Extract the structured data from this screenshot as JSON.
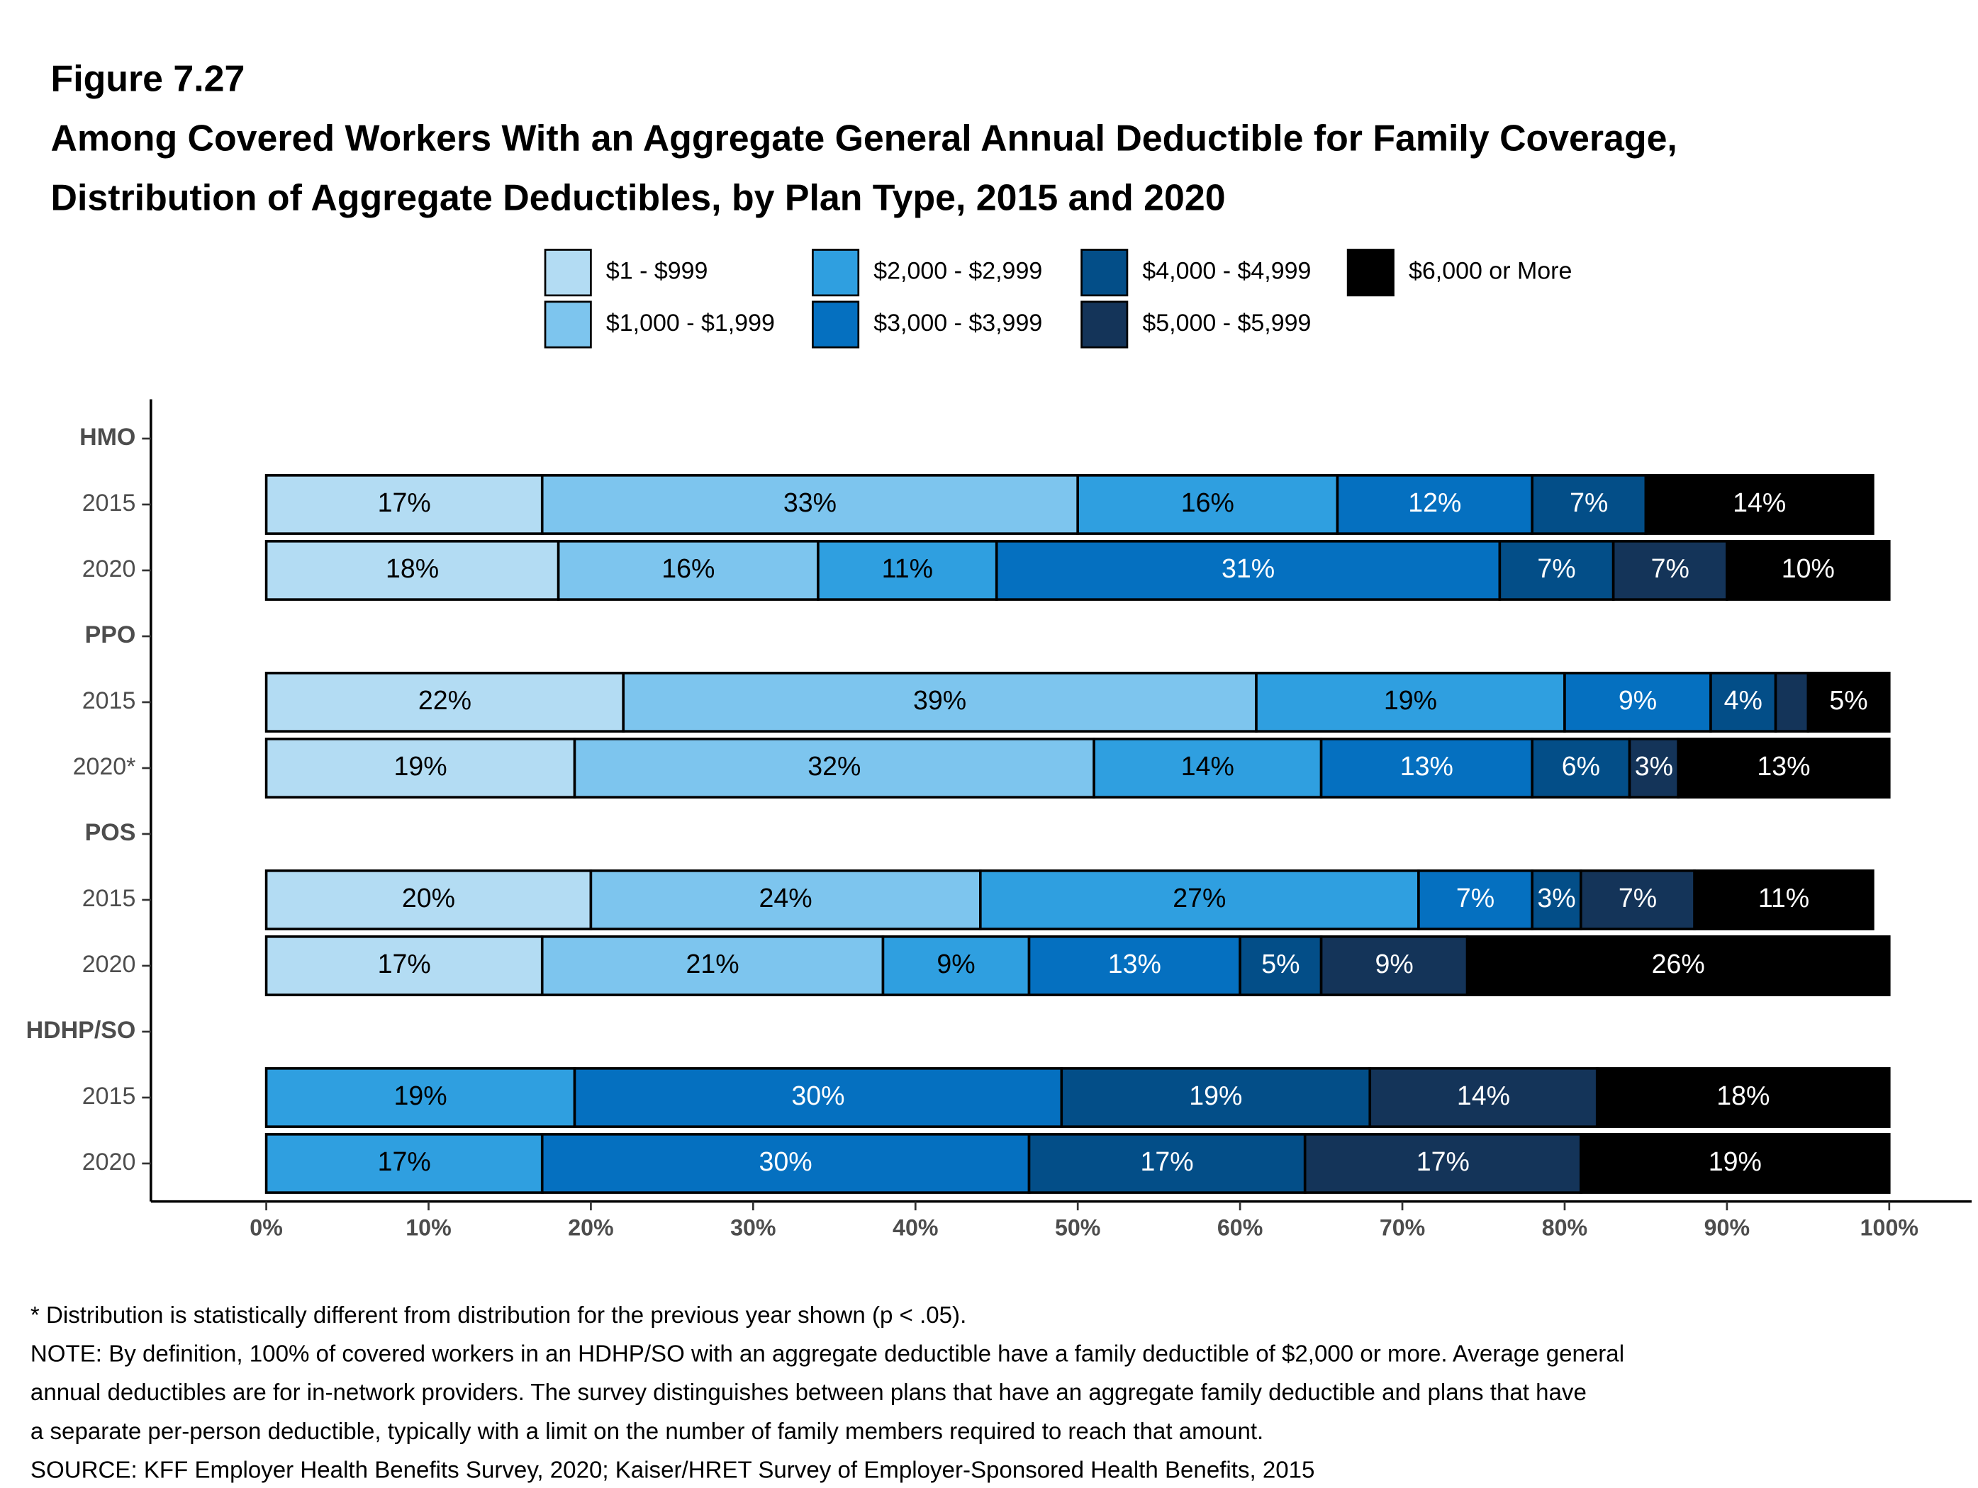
{
  "chart_data": {
    "type": "stacked-bar-horizontal",
    "figure_label": "Figure 7.27",
    "title": [
      "Among Covered Workers With an Aggregate General Annual Deductible for Family Coverage,",
      "Distribution of Aggregate Deductibles, by Plan Type, 2015 and 2020"
    ],
    "categories": [
      "HMO",
      "2015",
      "2020",
      "PPO",
      "2015",
      "2020*",
      "POS",
      "2015",
      "2020",
      "HDHP/SO",
      "2015",
      "2020"
    ],
    "series": [
      {
        "name": "$1 - $999",
        "color": "#b3dcf3",
        "label_color": "#000000",
        "values": [
          null,
          17,
          18,
          null,
          22,
          19,
          null,
          20,
          17,
          null,
          null,
          null
        ],
        "value_labels": [
          null,
          "17%",
          "18%",
          null,
          "22%",
          "19%",
          null,
          "20%",
          "17%",
          null,
          null,
          null
        ]
      },
      {
        "name": "$1,000 - $1,999",
        "color": "#7dc5ee",
        "label_color": "#000000",
        "values": [
          null,
          33,
          16,
          null,
          39,
          32,
          null,
          24,
          21,
          null,
          null,
          null
        ],
        "value_labels": [
          null,
          "33%",
          "16%",
          null,
          "39%",
          "32%",
          null,
          "24%",
          "21%",
          null,
          null,
          null
        ]
      },
      {
        "name": "$2,000 - $2,999",
        "color": "#2f9fe0",
        "label_color": "#000000",
        "values": [
          null,
          16,
          11,
          null,
          19,
          14,
          null,
          27,
          9,
          null,
          19,
          17
        ],
        "value_labels": [
          null,
          "16%",
          "11%",
          null,
          "19%",
          "14%",
          null,
          "27%",
          "9%",
          null,
          "19%",
          "17%"
        ]
      },
      {
        "name": "$3,000 - $3,999",
        "color": "#0570c0",
        "label_color": "#ffffff",
        "values": [
          null,
          12,
          31,
          null,
          9,
          13,
          null,
          7,
          13,
          null,
          30,
          30
        ],
        "value_labels": [
          null,
          "12%",
          "31%",
          null,
          "9%",
          "13%",
          null,
          "7%",
          "13%",
          null,
          "30%",
          "30%"
        ]
      },
      {
        "name": "$4,000 - $4,999",
        "color": "#034e88",
        "label_color": "#ffffff",
        "values": [
          null,
          7,
          7,
          null,
          4,
          6,
          null,
          3,
          5,
          null,
          19,
          17
        ],
        "value_labels": [
          null,
          "7%",
          "7%",
          null,
          "4%",
          "6%",
          null,
          "3%",
          "5%",
          null,
          "19%",
          "17%"
        ]
      },
      {
        "name": "$5,000 - $5,999",
        "color": "#143459",
        "label_color": "#ffffff",
        "values": [
          null,
          null,
          7,
          null,
          2,
          3,
          null,
          7,
          9,
          null,
          14,
          17
        ],
        "value_labels": [
          null,
          null,
          "7%",
          null,
          null,
          "3%",
          null,
          "7%",
          "9%",
          null,
          "14%",
          "17%"
        ]
      },
      {
        "name": "$6,000 or More",
        "color": "#000000",
        "label_color": "#ffffff",
        "values": [
          null,
          14,
          10,
          null,
          5,
          13,
          null,
          11,
          26,
          null,
          18,
          19
        ],
        "value_labels": [
          null,
          "14%",
          "10%",
          null,
          "5%",
          "13%",
          null,
          "11%",
          "26%",
          null,
          "18%",
          "19%"
        ]
      }
    ],
    "xlim": [
      0,
      100
    ],
    "xticks": [
      {
        "value": 0,
        "label": "0%"
      },
      {
        "value": 10,
        "label": "10%"
      },
      {
        "value": 20,
        "label": "20%"
      },
      {
        "value": 30,
        "label": "30%"
      },
      {
        "value": 40,
        "label": "40%"
      },
      {
        "value": 50,
        "label": "50%"
      },
      {
        "value": 60,
        "label": "60%"
      },
      {
        "value": 70,
        "label": "70%"
      },
      {
        "value": 80,
        "label": "80%"
      },
      {
        "value": 90,
        "label": "90%"
      },
      {
        "value": 100,
        "label": "100%"
      }
    ],
    "notes": [
      "* Distribution is statistically different from distribution for the previous year shown (p < .05).",
      "NOTE: By definition, 100% of covered workers in an HDHP/SO with an aggregate deductible have a family deductible of $2,000 or more. Average general",
      "annual deductibles are for in-network providers. The survey distinguishes between plans that have an aggregate family deductible and plans that have",
      "a separate per-person deductible, typically with a limit on the number of family members required to reach that amount.",
      "SOURCE: KFF Employer Health Benefits Survey, 2020; Kaiser/HRET Survey of Employer-Sponsored Health Benefits, 2015"
    ]
  }
}
